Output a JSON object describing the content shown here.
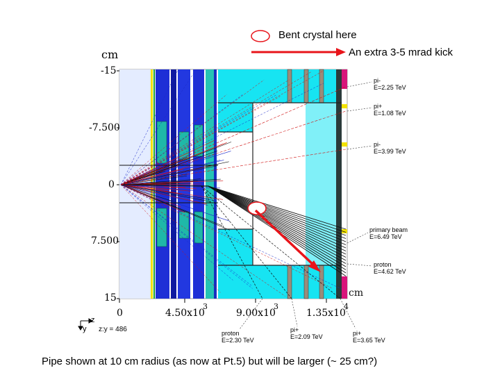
{
  "annotations": {
    "bent_crystal": "Bent crystal here",
    "extra_kick": "An extra 3-5 mrad kick",
    "caption": "Pipe shown at 10 cm radius (as now at Pt.5) but will be larger (~ 25 cm?)"
  },
  "axes": {
    "y_unit": "cm",
    "y_ticks": [
      "-15",
      "-7.500",
      "0",
      "7.500",
      "15"
    ],
    "x_unit": "cm",
    "x_ticks": [
      "0",
      "4.50x10",
      "9.00x10",
      "1.35x10"
    ],
    "x_tick_exponents": [
      "",
      "3",
      "3",
      "4"
    ],
    "view_label": "z:y = 486",
    "axis_z": "z",
    "axis_y": "y"
  },
  "particles": [
    {
      "name": "pi-",
      "energy": "E=2.25 TeV"
    },
    {
      "name": "pi+",
      "energy": "E=1.08 TeV"
    },
    {
      "name": "pi-",
      "energy": "E=3.99 TeV"
    },
    {
      "name": "primary beam",
      "energy": "E=6.49 TeV"
    },
    {
      "name": "proton",
      "energy": "E=4.62 TeV"
    }
  ],
  "bottom_particles": [
    {
      "name": "proton",
      "energy": "E=2.30 TeV"
    },
    {
      "name": "pi+",
      "energy": "E=2.09 TeV"
    },
    {
      "name": "pi+",
      "energy": "E=3.65 TeV"
    }
  ],
  "colors": {
    "arrow": "#e8141a",
    "crystal_marker": "#e8141a",
    "detector_blue": "#1e2fd6",
    "detector_teal": "#1fb8a8",
    "cyan_region": "#17e4f2",
    "tracks_black": "#111111",
    "tracks_red": "#d01010",
    "tracks_blue": "#1a28c8"
  }
}
